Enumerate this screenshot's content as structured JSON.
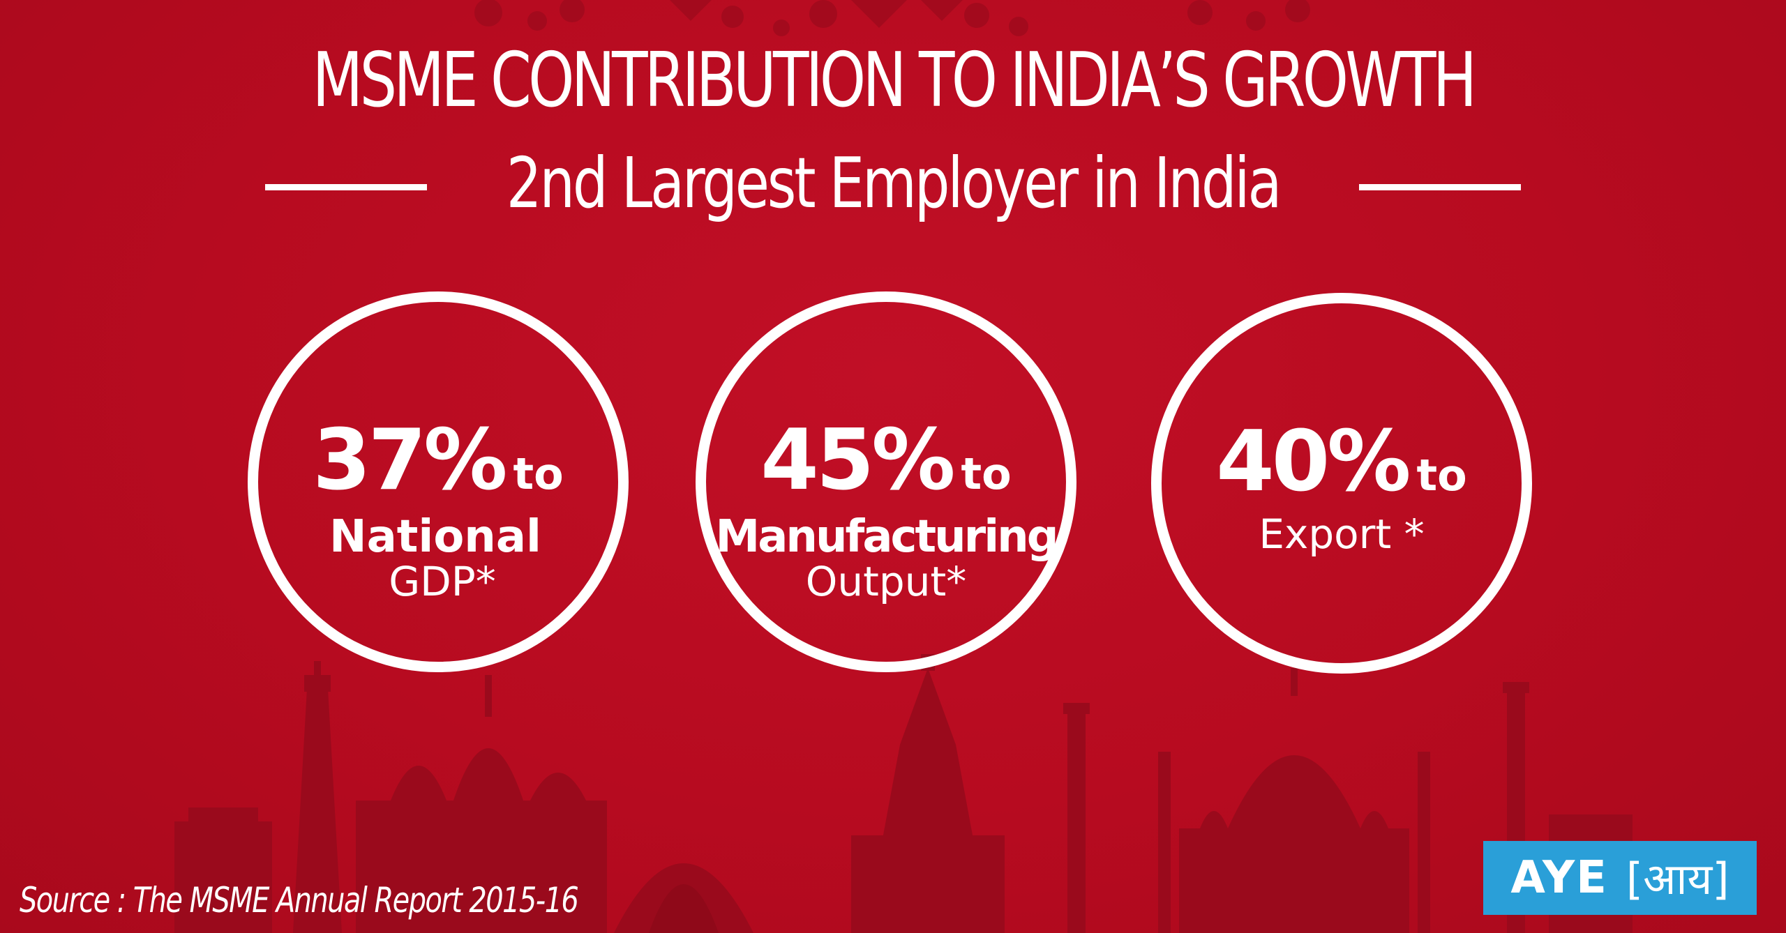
{
  "header": {
    "title": "MSME CONTRIBUTION TO INDIA’S GROWTH",
    "subtitle": "2nd Largest Employer in India"
  },
  "stats": [
    {
      "value": "37%",
      "suffix": "to",
      "line1": "National",
      "line2": "GDP*"
    },
    {
      "value": "45%",
      "suffix": "to",
      "line1": "Manufacturing",
      "line2": "Output*"
    },
    {
      "value": "40%",
      "suffix": "to",
      "line1": "Export *"
    }
  ],
  "footer": {
    "source": "Source : The MSME Annual Report 2015-16"
  },
  "logo": {
    "text": "AYE",
    "hindi": "[आय]"
  },
  "colors": {
    "background": "#b90c21",
    "silhouette": "#9a0a1c",
    "logo_bg": "#2a9fd8",
    "text": "#ffffff"
  }
}
